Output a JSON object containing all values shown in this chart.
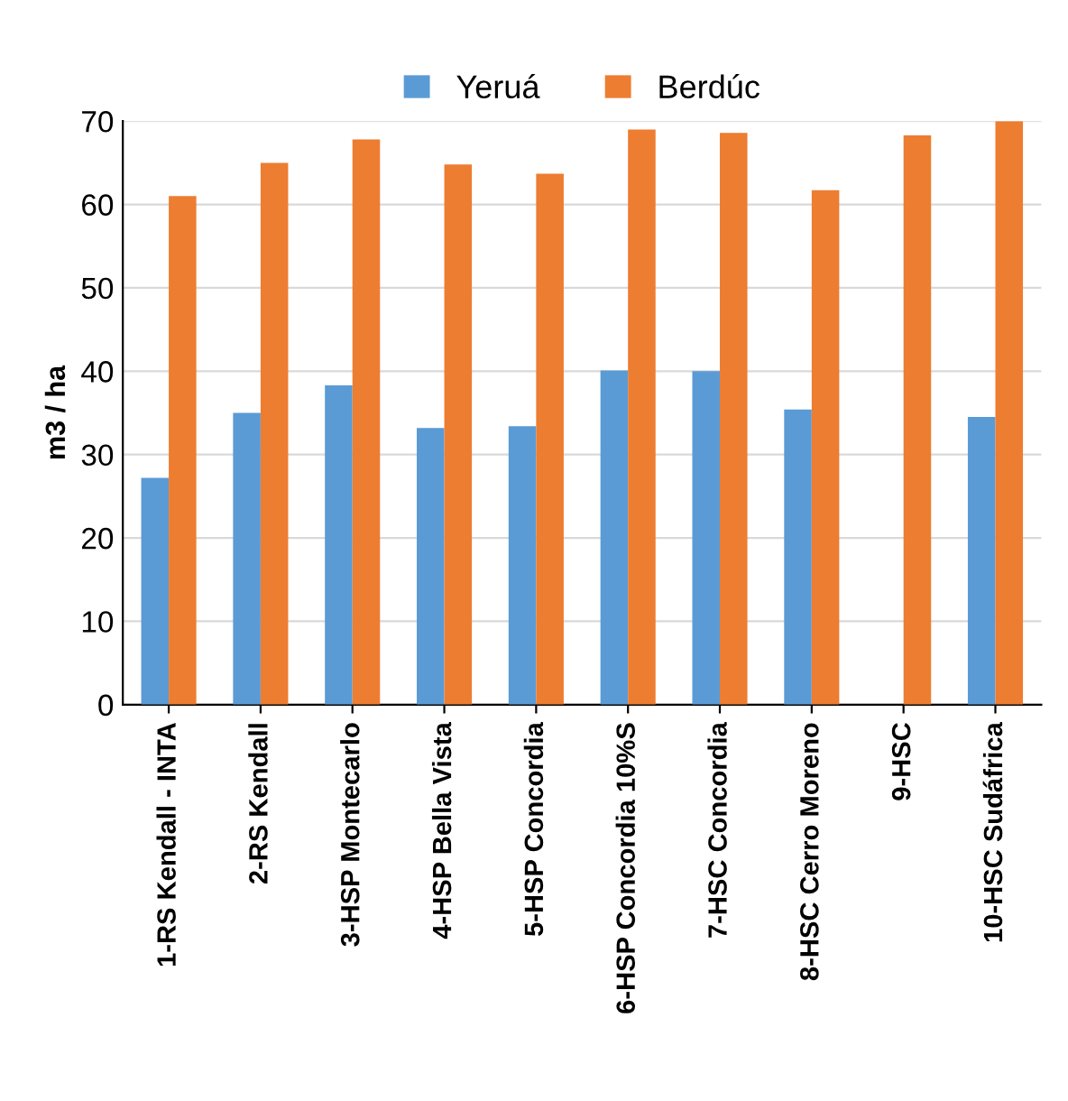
{
  "chart_data": {
    "type": "bar",
    "ylabel": "m3 / ha",
    "categories": [
      "1-RS Kendall - INTA",
      "2-RS Kendall",
      "3-HSP Montecarlo",
      "4-HSP Bella Vista",
      "5-HSP Concordia",
      "6-HSP Concordia 10%S",
      "7-HSC Concordia",
      "8-HSC Cerro Moreno",
      "9-HSC",
      "10-HSC Sudáfrica"
    ],
    "series": [
      {
        "name": "Yeruá",
        "color": "#5b9bd5",
        "values": [
          27.2,
          35.0,
          38.3,
          33.2,
          33.4,
          40.1,
          40.0,
          35.4,
          null,
          34.5
        ]
      },
      {
        "name": "Berdúc",
        "color": "#ed7d31",
        "values": [
          61.0,
          65.0,
          67.8,
          64.8,
          63.7,
          69.0,
          68.6,
          61.7,
          68.3,
          70.0
        ]
      }
    ],
    "ylim": [
      0,
      70
    ],
    "yticks": [
      0,
      10,
      20,
      30,
      40,
      50,
      60,
      70
    ],
    "grid": "y",
    "legend": "top"
  }
}
